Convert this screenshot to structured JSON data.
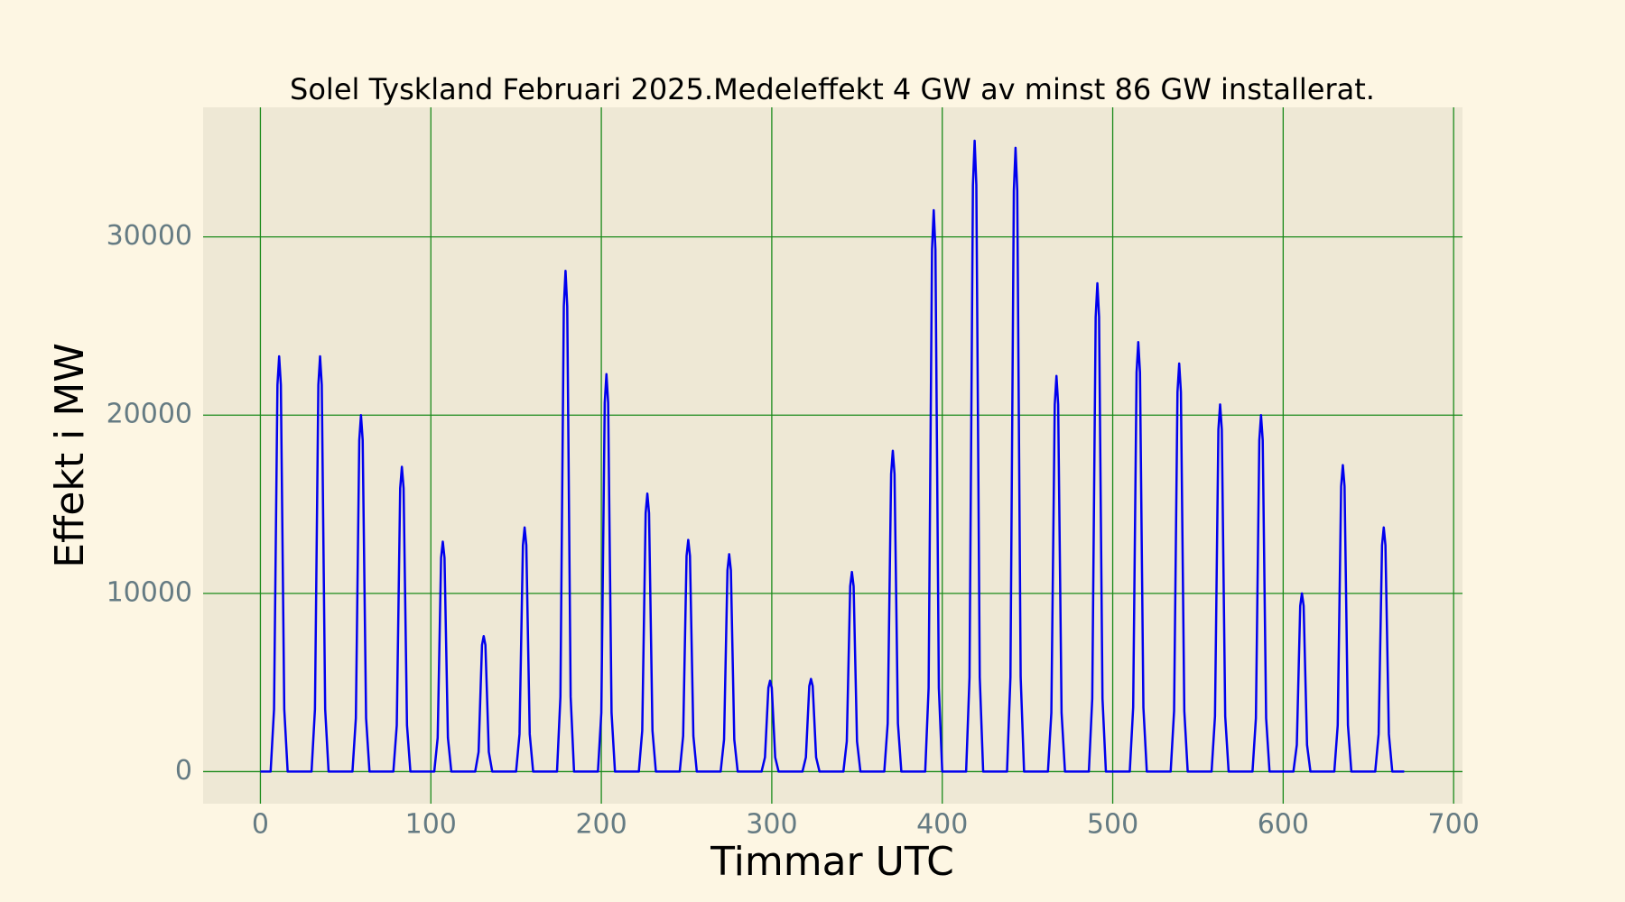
{
  "chart_data": {
    "type": "line",
    "title": "Solel Tyskland Februari 2025.Medeleffekt 4 GW av minst 86 GW installerat.",
    "x_label": "Timmar UTC",
    "y_label": "Effekt i MW",
    "xlim": [
      -33.6,
      705.2
    ],
    "ylim": [
      -1800,
      37270
    ],
    "xticks": [
      0,
      100,
      200,
      300,
      400,
      500,
      600,
      700
    ],
    "yticks": [
      0,
      10000,
      20000,
      30000
    ],
    "grid": true,
    "grid_color": "#1a8a1a",
    "background": "#eee8d5",
    "series": [
      {
        "name": "Solel",
        "color": "#0000ee",
        "x": [
          0,
          6,
          8,
          10,
          11,
          12,
          14,
          16,
          30,
          32,
          34,
          35,
          36,
          38,
          40,
          54,
          56,
          58,
          59,
          60,
          62,
          64,
          78,
          80,
          82,
          83,
          84,
          86,
          88,
          102,
          104,
          106,
          107,
          108,
          110,
          112,
          126,
          128,
          130,
          131,
          132,
          134,
          136,
          150,
          152,
          154,
          155,
          156,
          158,
          160,
          174,
          176,
          178,
          179,
          180,
          182,
          184,
          198,
          200,
          202,
          203,
          204,
          206,
          208,
          222,
          224,
          226,
          227,
          228,
          230,
          232,
          246,
          248,
          250,
          251,
          252,
          254,
          256,
          270,
          272,
          274,
          275,
          276,
          278,
          280,
          294,
          296,
          298,
          299,
          300,
          302,
          304,
          318,
          320,
          322,
          323,
          324,
          326,
          328,
          342,
          344,
          346,
          347,
          348,
          350,
          352,
          366,
          368,
          370,
          371,
          372,
          374,
          376,
          390,
          392,
          394,
          395,
          396,
          398,
          400,
          414,
          416,
          418,
          419,
          420,
          422,
          424,
          438,
          440,
          442,
          443,
          444,
          446,
          448,
          462,
          464,
          466,
          467,
          468,
          470,
          472,
          486,
          488,
          490,
          491,
          492,
          494,
          496,
          510,
          512,
          514,
          515,
          516,
          518,
          520,
          534,
          536,
          538,
          539,
          540,
          542,
          544,
          558,
          560,
          562,
          563,
          564,
          566,
          568,
          582,
          584,
          586,
          587,
          588,
          590,
          592,
          606,
          608,
          610,
          611,
          612,
          614,
          616,
          630,
          632,
          634,
          635,
          636,
          638,
          640,
          654,
          656,
          658,
          659,
          660,
          662,
          664,
          671
        ],
        "values": [
          0,
          0,
          3500,
          21700,
          23300,
          21700,
          3500,
          0,
          0,
          3500,
          21700,
          23300,
          21700,
          3500,
          0,
          0,
          3000,
          18600,
          20000,
          18600,
          3000,
          0,
          0,
          2600,
          15900,
          17100,
          15900,
          2600,
          0,
          0,
          1900,
          12000,
          12900,
          12000,
          1900,
          0,
          0,
          1100,
          7100,
          7600,
          7100,
          1100,
          0,
          0,
          2100,
          12700,
          13700,
          12700,
          2100,
          0,
          0,
          4200,
          26100,
          28100,
          26100,
          4200,
          0,
          0,
          3300,
          20700,
          22300,
          20700,
          3300,
          0,
          0,
          2300,
          14500,
          15600,
          14500,
          2300,
          0,
          0,
          2000,
          12100,
          13000,
          12100,
          2000,
          0,
          0,
          1800,
          11300,
          12200,
          11300,
          1800,
          0,
          0,
          800,
          4700,
          5100,
          4700,
          800,
          0,
          0,
          800,
          4800,
          5200,
          4800,
          800,
          0,
          0,
          1700,
          10400,
          11200,
          10400,
          1700,
          0,
          0,
          2700,
          16700,
          18000,
          16700,
          2700,
          0,
          0,
          4700,
          29300,
          31500,
          29300,
          4700,
          0,
          0,
          5300,
          32900,
          35400,
          32900,
          5300,
          0,
          0,
          5300,
          32600,
          35000,
          32600,
          5300,
          0,
          0,
          3300,
          20600,
          22200,
          20600,
          3300,
          0,
          0,
          4100,
          25500,
          27400,
          25500,
          4100,
          0,
          0,
          3600,
          22400,
          24100,
          22400,
          3600,
          0,
          0,
          3400,
          21300,
          22900,
          21300,
          3400,
          0,
          0,
          3100,
          19200,
          20600,
          19200,
          3100,
          0,
          0,
          3000,
          18600,
          20000,
          18600,
          3000,
          0,
          0,
          1500,
          9300,
          10000,
          9300,
          1500,
          0,
          0,
          2600,
          16000,
          17200,
          16000,
          2600,
          0,
          0,
          2100,
          12700,
          13700,
          12700,
          2100,
          0,
          0
        ]
      }
    ]
  }
}
